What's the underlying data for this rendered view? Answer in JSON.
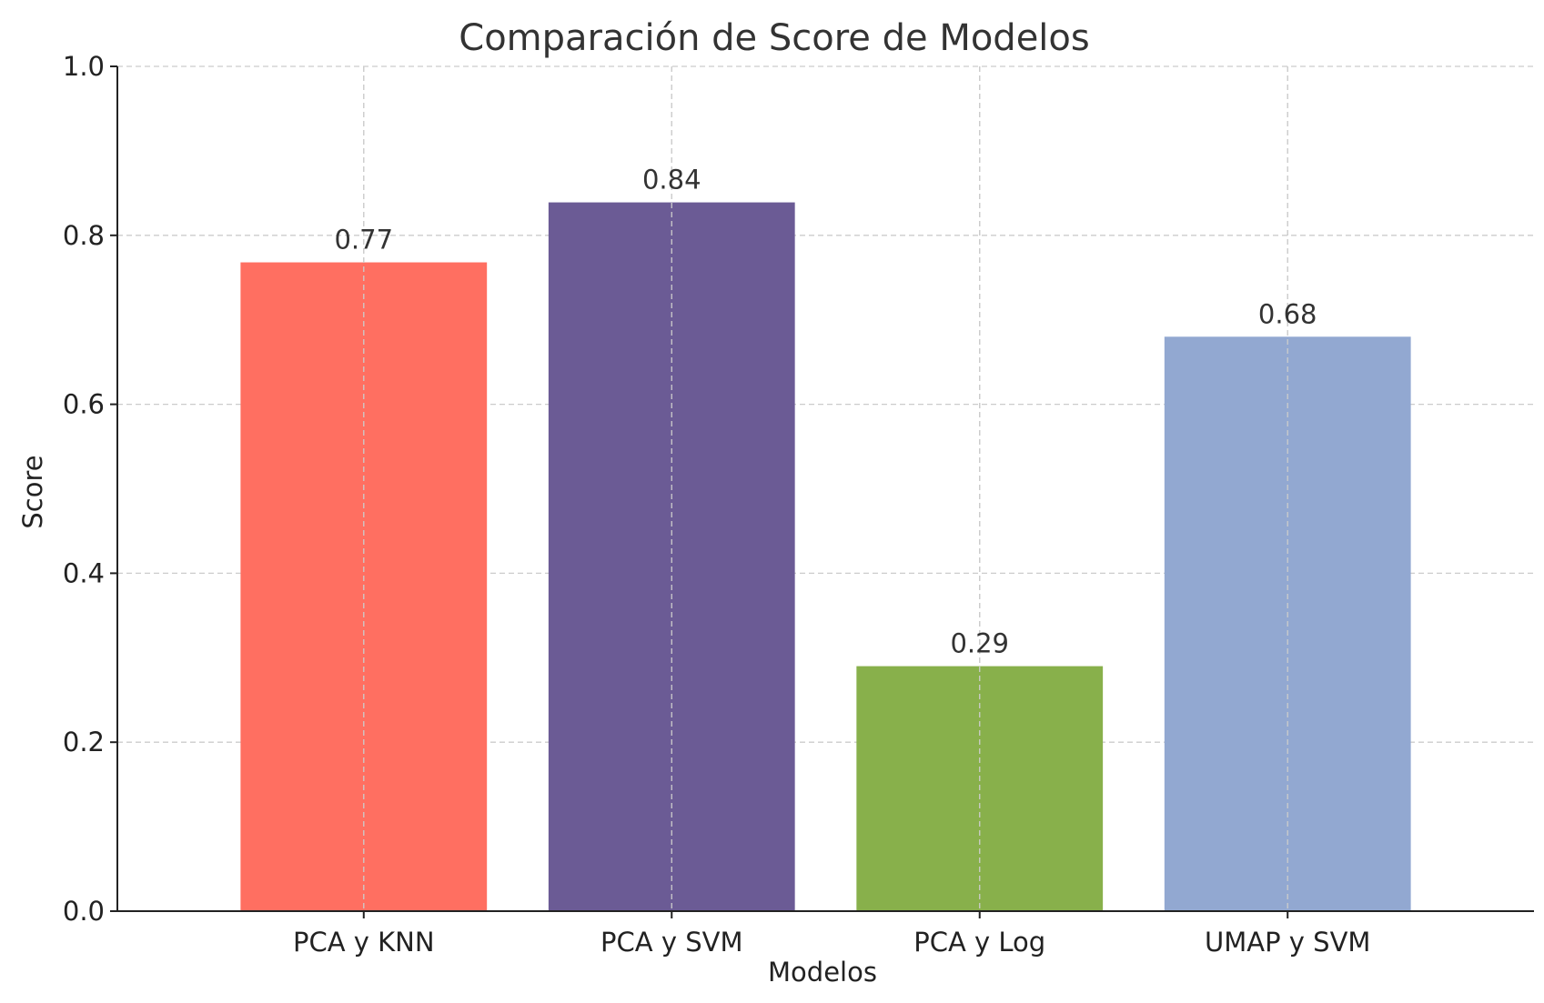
{
  "chart_data": {
    "type": "bar",
    "title": "Comparación de Score de Modelos",
    "xlabel": "Modelos",
    "ylabel": "Score",
    "categories": [
      "PCA y KNN",
      "PCA y SVM",
      "PCA y Log",
      "UMAP y SVM"
    ],
    "values": [
      0.768,
      0.839,
      0.29,
      0.68
    ],
    "value_labels": [
      "0.77",
      "0.84",
      "0.29",
      "0.68"
    ],
    "colors": [
      "#ff6f61",
      "#6b5b95",
      "#88b04b",
      "#92a8d1"
    ],
    "ylim": [
      0,
      1
    ],
    "yticks": [
      0,
      0.2,
      0.4,
      0.6,
      0.8,
      1
    ],
    "ytick_labels": [
      "0.0",
      "0.2",
      "0.4",
      "0.6",
      "0.8",
      "1.0"
    ],
    "grid": true,
    "legend": false
  }
}
